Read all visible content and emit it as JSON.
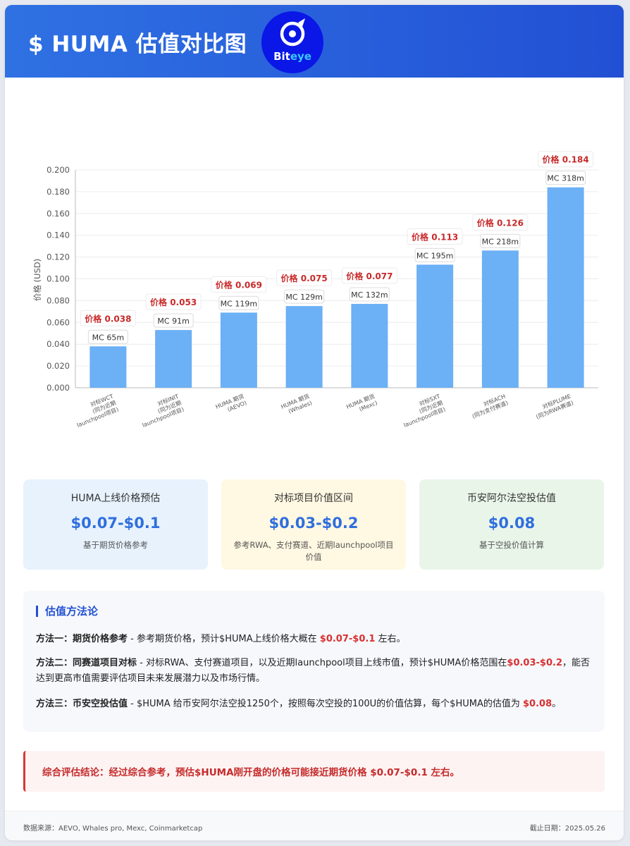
{
  "header": {
    "title": "$ HUMA 估值对比图",
    "logo_text_a": "Bit",
    "logo_text_b": "eye"
  },
  "chart_data": {
    "type": "bar",
    "ylabel": "价格 (USD)",
    "ylim": [
      0,
      0.2
    ],
    "yticks": [
      "0.000",
      "0.020",
      "0.040",
      "0.060",
      "0.080",
      "0.100",
      "0.120",
      "0.140",
      "0.160",
      "0.180",
      "0.200"
    ],
    "grid": true,
    "bar_color": "#6cb0f5",
    "categories": [
      [
        "对标WCT",
        "(同为近期",
        "launchpool项目)"
      ],
      [
        "对标INIT",
        "(同为近期",
        "launchpool项目)"
      ],
      [
        "HUMA 期货",
        "(AEVO)"
      ],
      [
        "HUMA 期货",
        "(Whales)"
      ],
      [
        "HUMA 期货",
        "(Mexc)"
      ],
      [
        "对标SXT",
        "(同为近期",
        "launchpool项目)"
      ],
      [
        "对标ACH",
        "(同为支付赛道)"
      ],
      [
        "对标PLUME",
        "(同为RWA赛道)"
      ]
    ],
    "values": [
      0.038,
      0.053,
      0.069,
      0.075,
      0.077,
      0.113,
      0.126,
      0.184
    ],
    "price_labels": [
      "价格 0.038",
      "价格 0.053",
      "价格 0.069",
      "价格 0.075",
      "价格 0.077",
      "价格 0.113",
      "价格 0.126",
      "价格 0.184"
    ],
    "mc_labels": [
      "MC 65m",
      "MC 91m",
      "MC 119m",
      "MC 129m",
      "MC 132m",
      "MC 195m",
      "MC 218m",
      "MC 318m"
    ]
  },
  "stats": [
    {
      "label": "HUMA上线价格预估",
      "value": "$0.07-$0.1",
      "note": "基于期货价格参考",
      "bg": "#e7f2fd"
    },
    {
      "label": "对标项目价值区间",
      "value": "$0.03-$0.2",
      "note": "参考RWA、支付赛道、近期launchpool项目价值",
      "bg": "#fff8e2"
    },
    {
      "label": "币安阿尔法空投估值",
      "value": "$0.08",
      "note": "基于空投价值计算",
      "bg": "#e9f5e9"
    }
  ],
  "methodology": {
    "title": "估值方法论",
    "m1_head": "方法一：期货价格参考",
    "m1_text": " - 参考期货价格，预计$HUMA上线价格大概在 ",
    "m1_hl": "$0.07-$0.1",
    "m1_tail": " 左右。",
    "m2_head": "方法二：同赛道项目对标",
    "m2_text": " - 对标RWA、支付赛道项目，以及近期launchpool项目上线市值，预计$HUMA价格范围在",
    "m2_hl": "$0.03-$0.2",
    "m2_tail": "，能否达到更高市值需要评估项目未来发展潜力以及市场行情。",
    "m3_head": "方法三：币安空投估值",
    "m3_text": " - $HUMA 给币安阿尔法空投1250个，按照每次空投的100U的价值估算，每个$HUMA的估值为 ",
    "m3_hl": "$0.08",
    "m3_tail": "。"
  },
  "conclusion": "综合评估结论：经过综合参考，预估$HUMA刚开盘的价格可能接近期货价格 $0.07-$0.1 左右。",
  "footer": {
    "source": "数据来源：AEVO, Whales pro, Mexc, Coinmarketcap",
    "date": "截止日期：2025.05.26"
  }
}
